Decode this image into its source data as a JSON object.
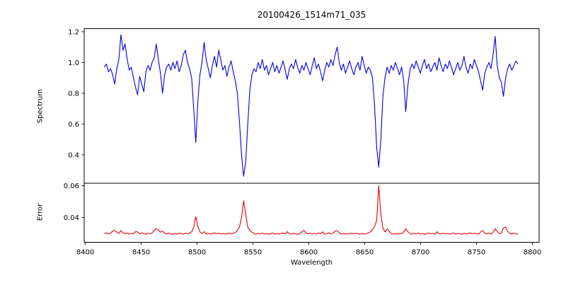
{
  "chart_data": {
    "type": "line",
    "title": "20100426_1514m71_035",
    "xlabel": "Wavelength",
    "grid": false,
    "legend": "none",
    "xlim": [
      8399,
      8806
    ],
    "xticks": [
      8400,
      8450,
      8500,
      8550,
      8600,
      8650,
      8700,
      8750,
      8800
    ],
    "xtick_labels": [
      "8400",
      "8450",
      "8500",
      "8550",
      "8600",
      "8650",
      "8700",
      "8750",
      "8800"
    ],
    "x_start": 8417,
    "x_step": 1.86,
    "axis_color": "#000000",
    "panels": [
      {
        "name": "spectrum",
        "ylabel": "Spectrum",
        "color": "#0000e0",
        "ylim": [
          0.215,
          1.22
        ],
        "yticks": [
          0.4,
          0.6,
          0.8,
          1.0,
          1.2
        ],
        "ytick_labels": [
          "0.4",
          "0.6",
          "0.8",
          "1.0",
          "1.2"
        ],
        "values": [
          0.97,
          0.99,
          0.94,
          0.96,
          0.92,
          0.86,
          0.96,
          1.02,
          1.18,
          1.08,
          1.12,
          1.02,
          0.95,
          0.97,
          0.9,
          0.84,
          0.79,
          0.91,
          0.86,
          0.81,
          0.94,
          0.98,
          0.95,
          1.0,
          1.03,
          1.12,
          1.02,
          0.93,
          0.8,
          0.92,
          0.97,
          0.99,
          0.95,
          1.0,
          0.96,
          1.01,
          0.94,
          0.98,
          1.05,
          1.08,
          1.0,
          0.96,
          0.9,
          0.7,
          0.48,
          0.75,
          0.92,
          1.0,
          1.13,
          1.02,
          0.96,
          0.9,
          0.98,
          1.04,
          0.97,
          1.08,
          1.02,
          0.95,
          0.98,
          0.91,
          0.97,
          1.01,
          0.94,
          0.88,
          0.8,
          0.62,
          0.4,
          0.26,
          0.35,
          0.6,
          0.82,
          0.92,
          0.96,
          0.94,
          1.0,
          0.96,
          1.02,
          0.95,
          0.98,
          0.92,
          0.96,
          1.0,
          0.94,
          0.98,
          0.93,
          0.97,
          1.01,
          0.95,
          0.89,
          0.96,
          0.99,
          0.96,
          1.02,
          0.97,
          0.93,
          0.98,
          0.95,
          1.0,
          0.96,
          0.92,
          0.98,
          1.03,
          0.96,
          0.99,
          0.94,
          0.88,
          0.95,
          1.0,
          0.97,
          1.02,
          0.98,
          1.05,
          1.1,
          1.0,
          0.95,
          0.99,
          0.93,
          0.97,
          1.01,
          0.96,
          0.92,
          0.97,
          1.0,
          0.95,
          1.04,
          0.98,
          0.93,
          0.97,
          0.95,
          0.9,
          0.72,
          0.45,
          0.32,
          0.5,
          0.78,
          0.9,
          0.97,
          0.93,
          0.98,
          0.95,
          1.0,
          0.96,
          0.92,
          0.97,
          0.88,
          0.68,
          0.85,
          0.95,
          0.99,
          0.96,
          1.01,
          0.97,
          0.93,
          0.98,
          1.02,
          0.96,
          0.99,
          0.94,
          0.97,
          1.0,
          0.95,
          1.03,
          0.98,
          0.94,
          0.99,
          0.96,
          1.01,
          0.97,
          0.92,
          0.96,
          1.0,
          0.95,
          0.98,
          1.04,
          0.97,
          0.93,
          0.99,
          0.96,
          1.02,
          0.98,
          0.94,
          0.88,
          0.82,
          0.93,
          0.97,
          1.0,
          0.96,
          1.05,
          1.17,
          0.98,
          0.9,
          0.87,
          0.78,
          0.9,
          0.96,
          0.99,
          0.95,
          0.98,
          1.01,
          0.99
        ]
      },
      {
        "name": "error",
        "ylabel": "Error",
        "color": "#e80000",
        "ylim": [
          0.0245,
          0.0615
        ],
        "yticks": [
          0.04,
          0.06
        ],
        "ytick_labels": [
          "0.04",
          "0.06"
        ],
        "values": [
          0.03,
          0.0304,
          0.0297,
          0.0302,
          0.0315,
          0.032,
          0.0308,
          0.03,
          0.0318,
          0.0305,
          0.0298,
          0.0303,
          0.0296,
          0.0301,
          0.0299,
          0.0312,
          0.031,
          0.0298,
          0.0304,
          0.03,
          0.0295,
          0.0302,
          0.0298,
          0.0305,
          0.032,
          0.033,
          0.0322,
          0.0308,
          0.0315,
          0.0302,
          0.0297,
          0.0303,
          0.0298,
          0.0295,
          0.0301,
          0.0297,
          0.0303,
          0.0299,
          0.0296,
          0.0302,
          0.0298,
          0.0304,
          0.031,
          0.034,
          0.0405,
          0.0345,
          0.031,
          0.03,
          0.0312,
          0.0297,
          0.0302,
          0.0296,
          0.03,
          0.0305,
          0.0298,
          0.0303,
          0.0297,
          0.0301,
          0.0296,
          0.0299,
          0.0303,
          0.0298,
          0.0302,
          0.0306,
          0.032,
          0.034,
          0.04,
          0.0505,
          0.042,
          0.034,
          0.032,
          0.0308,
          0.03,
          0.0296,
          0.0301,
          0.0298,
          0.0303,
          0.0297,
          0.03,
          0.0295,
          0.0299,
          0.0303,
          0.0297,
          0.0301,
          0.0296,
          0.03,
          0.0304,
          0.0298,
          0.0312,
          0.03,
          0.0297,
          0.0302,
          0.0298,
          0.0295,
          0.03,
          0.031,
          0.032,
          0.0305,
          0.0298,
          0.0302,
          0.0296,
          0.0301,
          0.0297,
          0.0303,
          0.0299,
          0.031,
          0.0296,
          0.03,
          0.0304,
          0.0298,
          0.0302,
          0.0315,
          0.0318,
          0.0305,
          0.0297,
          0.0301,
          0.0296,
          0.03,
          0.0298,
          0.0303,
          0.0297,
          0.0302,
          0.0299,
          0.0295,
          0.0301,
          0.0297,
          0.03,
          0.0304,
          0.031,
          0.0325,
          0.0345,
          0.038,
          0.06,
          0.042,
          0.0335,
          0.031,
          0.033,
          0.0315,
          0.03,
          0.0296,
          0.0301,
          0.0297,
          0.0302,
          0.0298,
          0.031,
          0.033,
          0.0312,
          0.03,
          0.0296,
          0.0301,
          0.0298,
          0.0303,
          0.0297,
          0.03,
          0.0295,
          0.0299,
          0.0303,
          0.0298,
          0.0302,
          0.0296,
          0.0312,
          0.03,
          0.0297,
          0.0302,
          0.0298,
          0.0301,
          0.0296,
          0.03,
          0.0303,
          0.0297,
          0.0301,
          0.0298,
          0.0295,
          0.0302,
          0.0297,
          0.03,
          0.0304,
          0.0298,
          0.0302,
          0.0299,
          0.0296,
          0.031,
          0.0318,
          0.0304,
          0.0298,
          0.0302,
          0.0297,
          0.0308,
          0.033,
          0.0312,
          0.03,
          0.0305,
          0.0335,
          0.034,
          0.0315,
          0.03,
          0.0297,
          0.0302,
          0.0298,
          0.0294
        ]
      }
    ]
  }
}
